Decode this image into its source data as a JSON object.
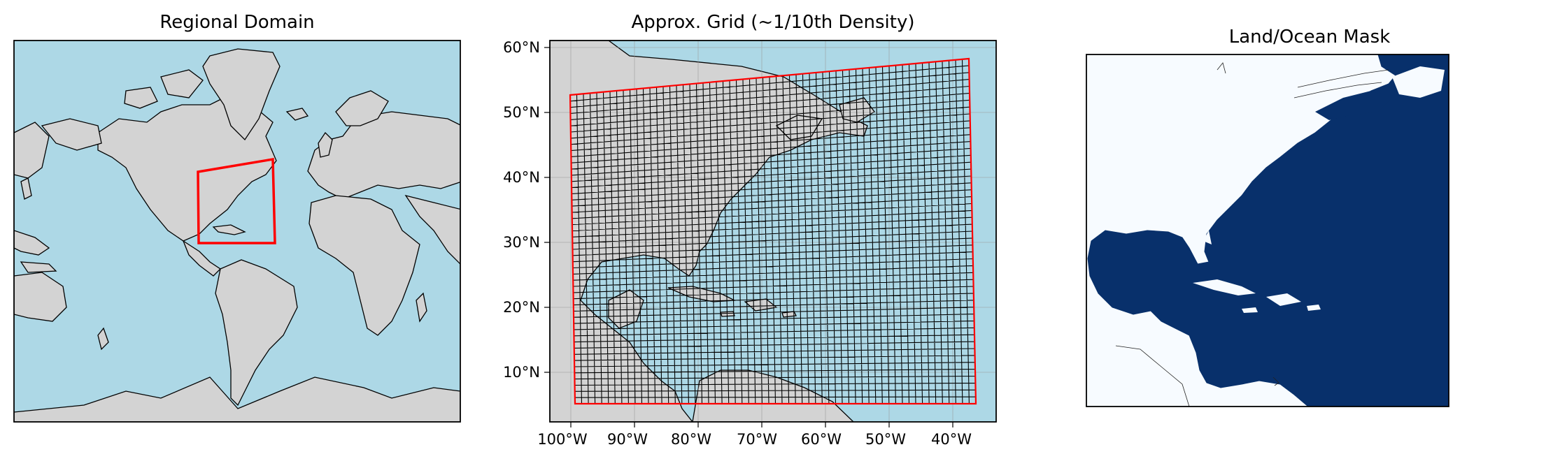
{
  "panels": [
    {
      "title": "Regional Domain"
    },
    {
      "title": "Approx. Grid (~1/10th Density)"
    },
    {
      "title": "Land/Ocean Mask"
    }
  ],
  "grid_panel": {
    "lat_ticks": [
      "60°N",
      "50°N",
      "40°N",
      "30°N",
      "20°N",
      "10°N"
    ],
    "lon_ticks": [
      "100°W",
      "90°W",
      "80°W",
      "70°W",
      "60°W",
      "50°W",
      "40°W"
    ]
  },
  "colors": {
    "ocean": "#add8e6",
    "land": "#d3d3d3",
    "domain_box": "#ff0000",
    "mask_ocean": "#08306b",
    "mask_land": "#f7fbff",
    "grid_lines": "#000000"
  }
}
